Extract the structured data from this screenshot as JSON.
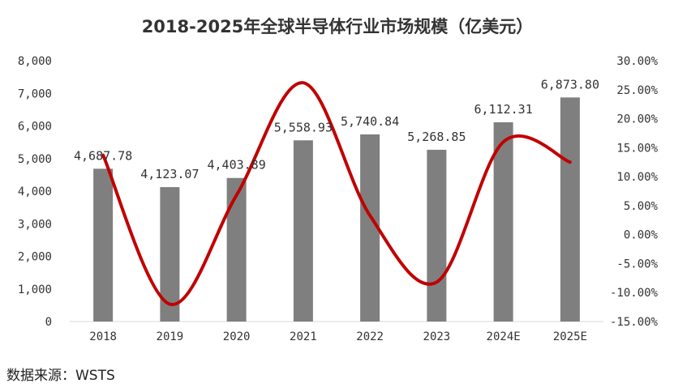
{
  "chart_data": {
    "type": "bar",
    "title": "2018-2025年全球半导体行业市场规模（亿美元）",
    "categories": [
      "2018",
      "2019",
      "2020",
      "2021",
      "2022",
      "2023",
      "2024E",
      "2025E"
    ],
    "series": [
      {
        "type": "bar",
        "axis": "left",
        "values": [
          4687.78,
          4123.07,
          4403.89,
          5558.93,
          5740.84,
          5268.85,
          6112.31,
          6873.8
        ],
        "labels": [
          "4,687.78",
          "4,123.07",
          "4,403.89",
          "5,558.93",
          "5,740.84",
          "5,268.85",
          "6,112.31",
          "6,873.80"
        ],
        "color": "#7f7f7f"
      },
      {
        "type": "line",
        "axis": "right",
        "values": [
          13.7,
          -12.0,
          6.8,
          26.2,
          3.3,
          -8.2,
          16.0,
          12.5
        ],
        "color": "#c00000",
        "smooth": true
      }
    ],
    "y_left": {
      "range": [
        0,
        8000
      ],
      "ticks": [
        "0",
        "1,000",
        "2,000",
        "3,000",
        "4,000",
        "5,000",
        "6,000",
        "7,000",
        "8,000"
      ]
    },
    "y_right": {
      "range": [
        -15,
        30
      ],
      "ticks": [
        "-15.00%",
        "-10.00%",
        "-5.00%",
        "0.00%",
        "5.00%",
        "10.00%",
        "15.00%",
        "20.00%",
        "25.00%",
        "30.00%"
      ]
    },
    "grid": false,
    "legend": "none"
  },
  "source_text": "数据来源：WSTS"
}
